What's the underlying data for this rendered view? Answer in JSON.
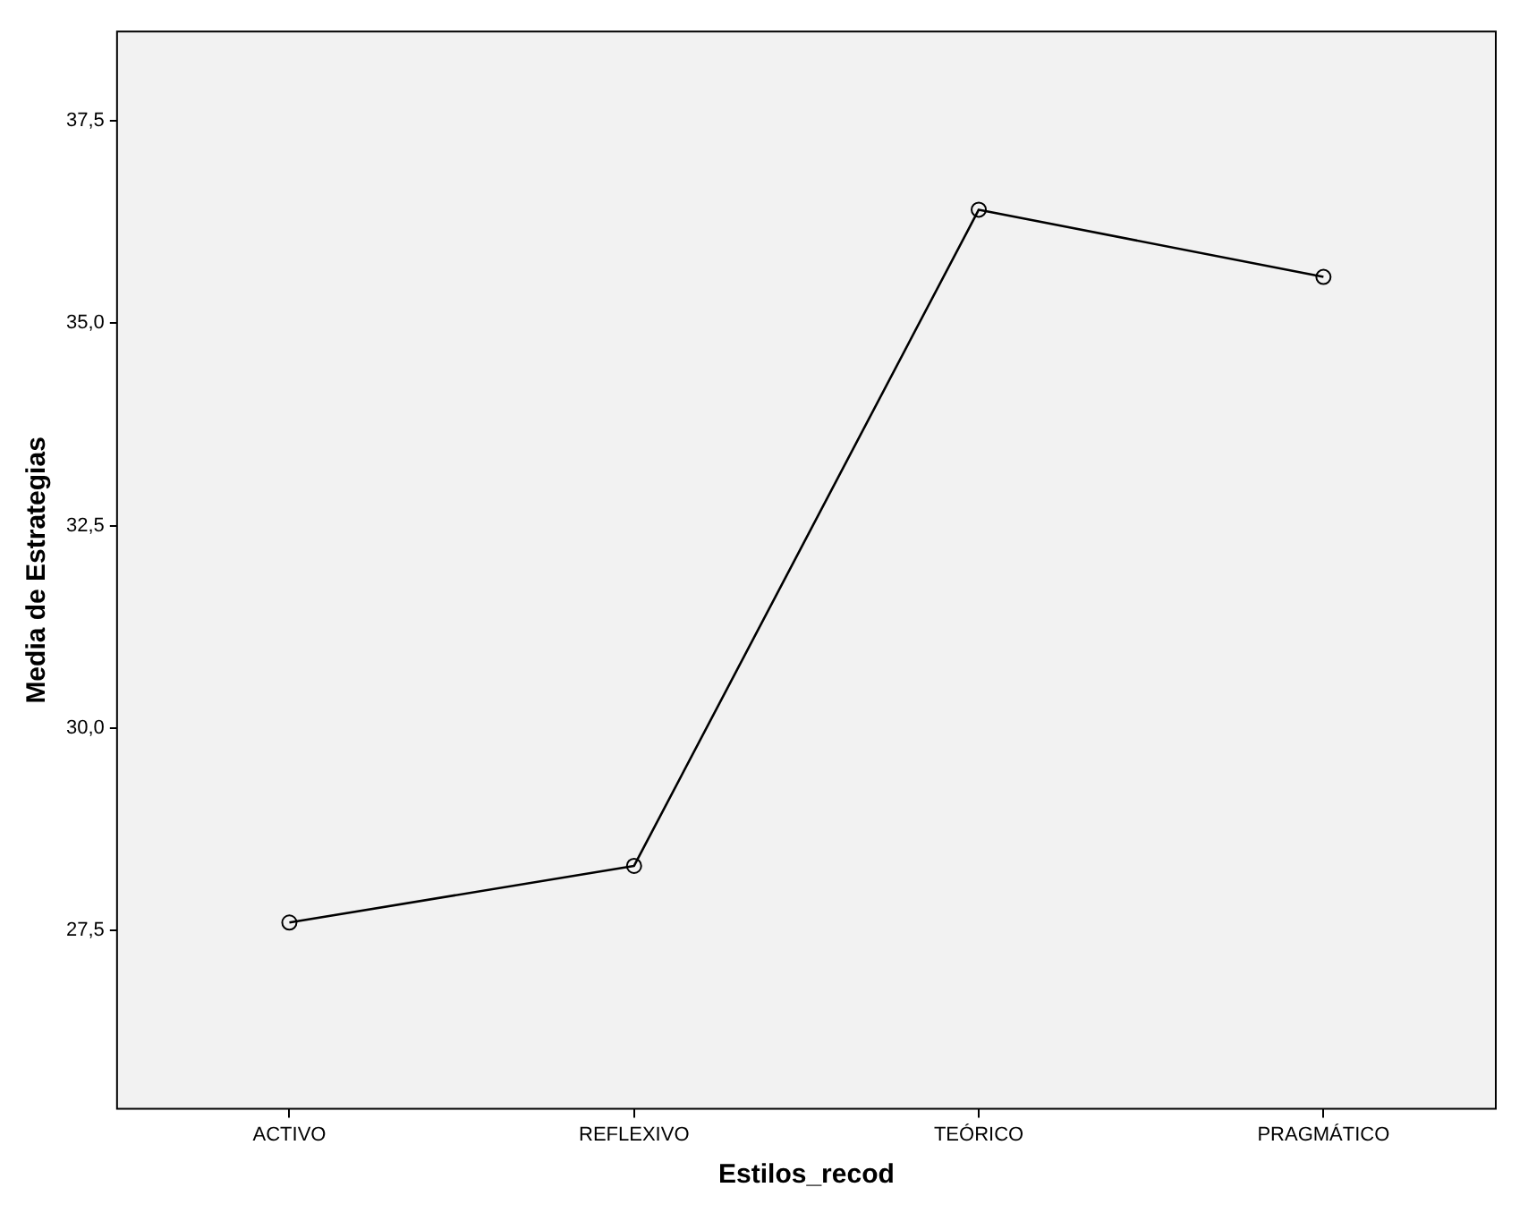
{
  "chart_data": {
    "type": "line",
    "xlabel": "Estilos_recod",
    "ylabel": "Media de Estrategias",
    "categories": [
      "ACTIVO",
      "REFLEXIVO",
      "TEÓRICO",
      "PRAGMÁTICO"
    ],
    "series": [
      {
        "color": "#000000",
        "values": [
          27.6,
          28.3,
          36.4,
          35.57
        ]
      }
    ],
    "ylim": [
      25.3,
      38.6
    ],
    "yticks": [
      {
        "value": 27.5,
        "label": "27,5"
      },
      {
        "value": 30,
        "label": "30,0"
      },
      {
        "value": 32.5,
        "label": "32,5"
      },
      {
        "value": 35,
        "label": "35,0"
      },
      {
        "value": 37.5,
        "label": "37,5"
      }
    ],
    "grid": false,
    "legend": false,
    "marker": "circle",
    "line_style": "solid"
  }
}
